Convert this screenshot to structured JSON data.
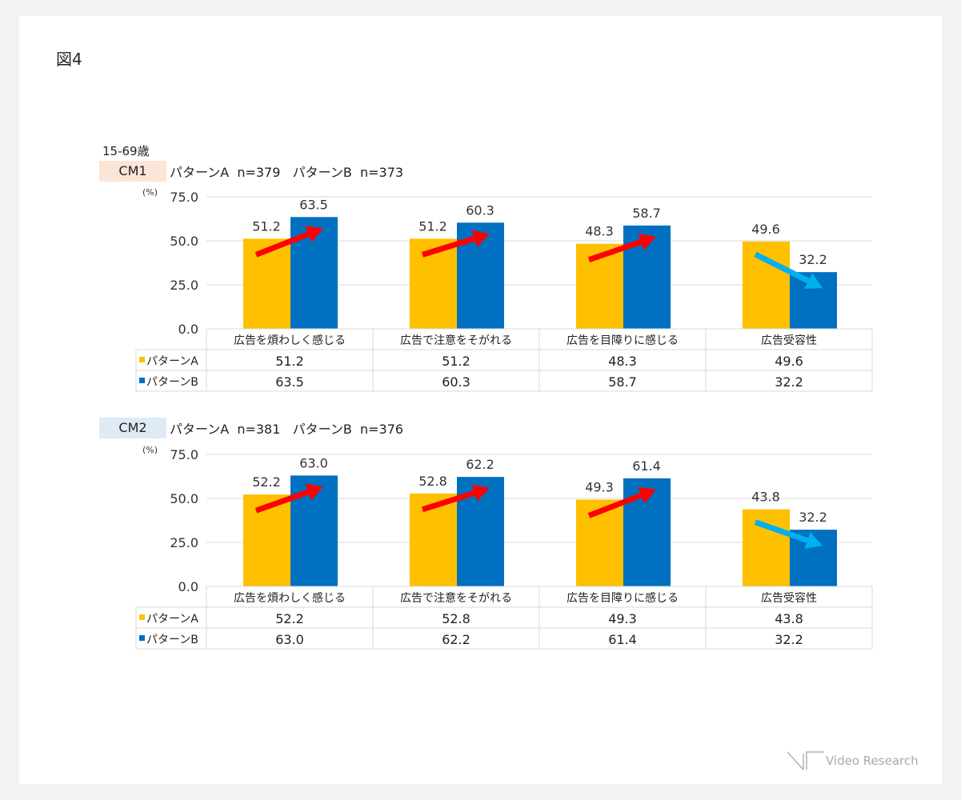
{
  "figure_label": "図4",
  "age_label": "15-69歳",
  "logo_text": "Video Research",
  "colors": {
    "pattern_a": "#ffc000",
    "pattern_b": "#0070c0",
    "arrow_up": "#ff0000",
    "arrow_down": "#00b0f0",
    "cm1_tag": "#fbe5d6",
    "cm2_tag": "#deebf7"
  },
  "chart_data": [
    {
      "type": "bar",
      "tag": "CM1",
      "sample_text": "パターンA  n=379   パターンB  n=373",
      "ylabel": "(%)",
      "ylim": [
        0,
        75
      ],
      "yticks": [
        "0.0",
        "25.0",
        "50.0",
        "75.0"
      ],
      "grid": true,
      "categories": [
        "広告を煩わしく感じる",
        "広告で注意をそがれる",
        "広告を目障りに感じる",
        "広告受容性"
      ],
      "series": [
        {
          "name": "パターンA",
          "values": [
            51.2,
            51.2,
            48.3,
            49.6
          ],
          "labels": [
            "51.2",
            "51.2",
            "48.3",
            "49.6"
          ]
        },
        {
          "name": "パターンB",
          "values": [
            63.5,
            60.3,
            58.7,
            32.2
          ],
          "labels": [
            "63.5",
            "60.3",
            "58.7",
            "32.2"
          ]
        }
      ],
      "arrows": [
        "up",
        "up",
        "up",
        "down"
      ]
    },
    {
      "type": "bar",
      "tag": "CM2",
      "sample_text": "パターンA  n=381   パターンB  n=376",
      "ylabel": "(%)",
      "ylim": [
        0,
        75
      ],
      "yticks": [
        "0.0",
        "25.0",
        "50.0",
        "75.0"
      ],
      "grid": true,
      "categories": [
        "広告を煩わしく感じる",
        "広告で注意をそがれる",
        "広告を目障りに感じる",
        "広告受容性"
      ],
      "series": [
        {
          "name": "パターンA",
          "values": [
            52.2,
            52.8,
            49.3,
            43.8
          ],
          "labels": [
            "52.2",
            "52.8",
            "49.3",
            "43.8"
          ]
        },
        {
          "name": "パターンB",
          "values": [
            63.0,
            62.2,
            61.4,
            32.2
          ],
          "labels": [
            "63.0",
            "62.2",
            "61.4",
            "32.2"
          ]
        }
      ],
      "arrows": [
        "up",
        "up",
        "up",
        "down"
      ]
    }
  ]
}
